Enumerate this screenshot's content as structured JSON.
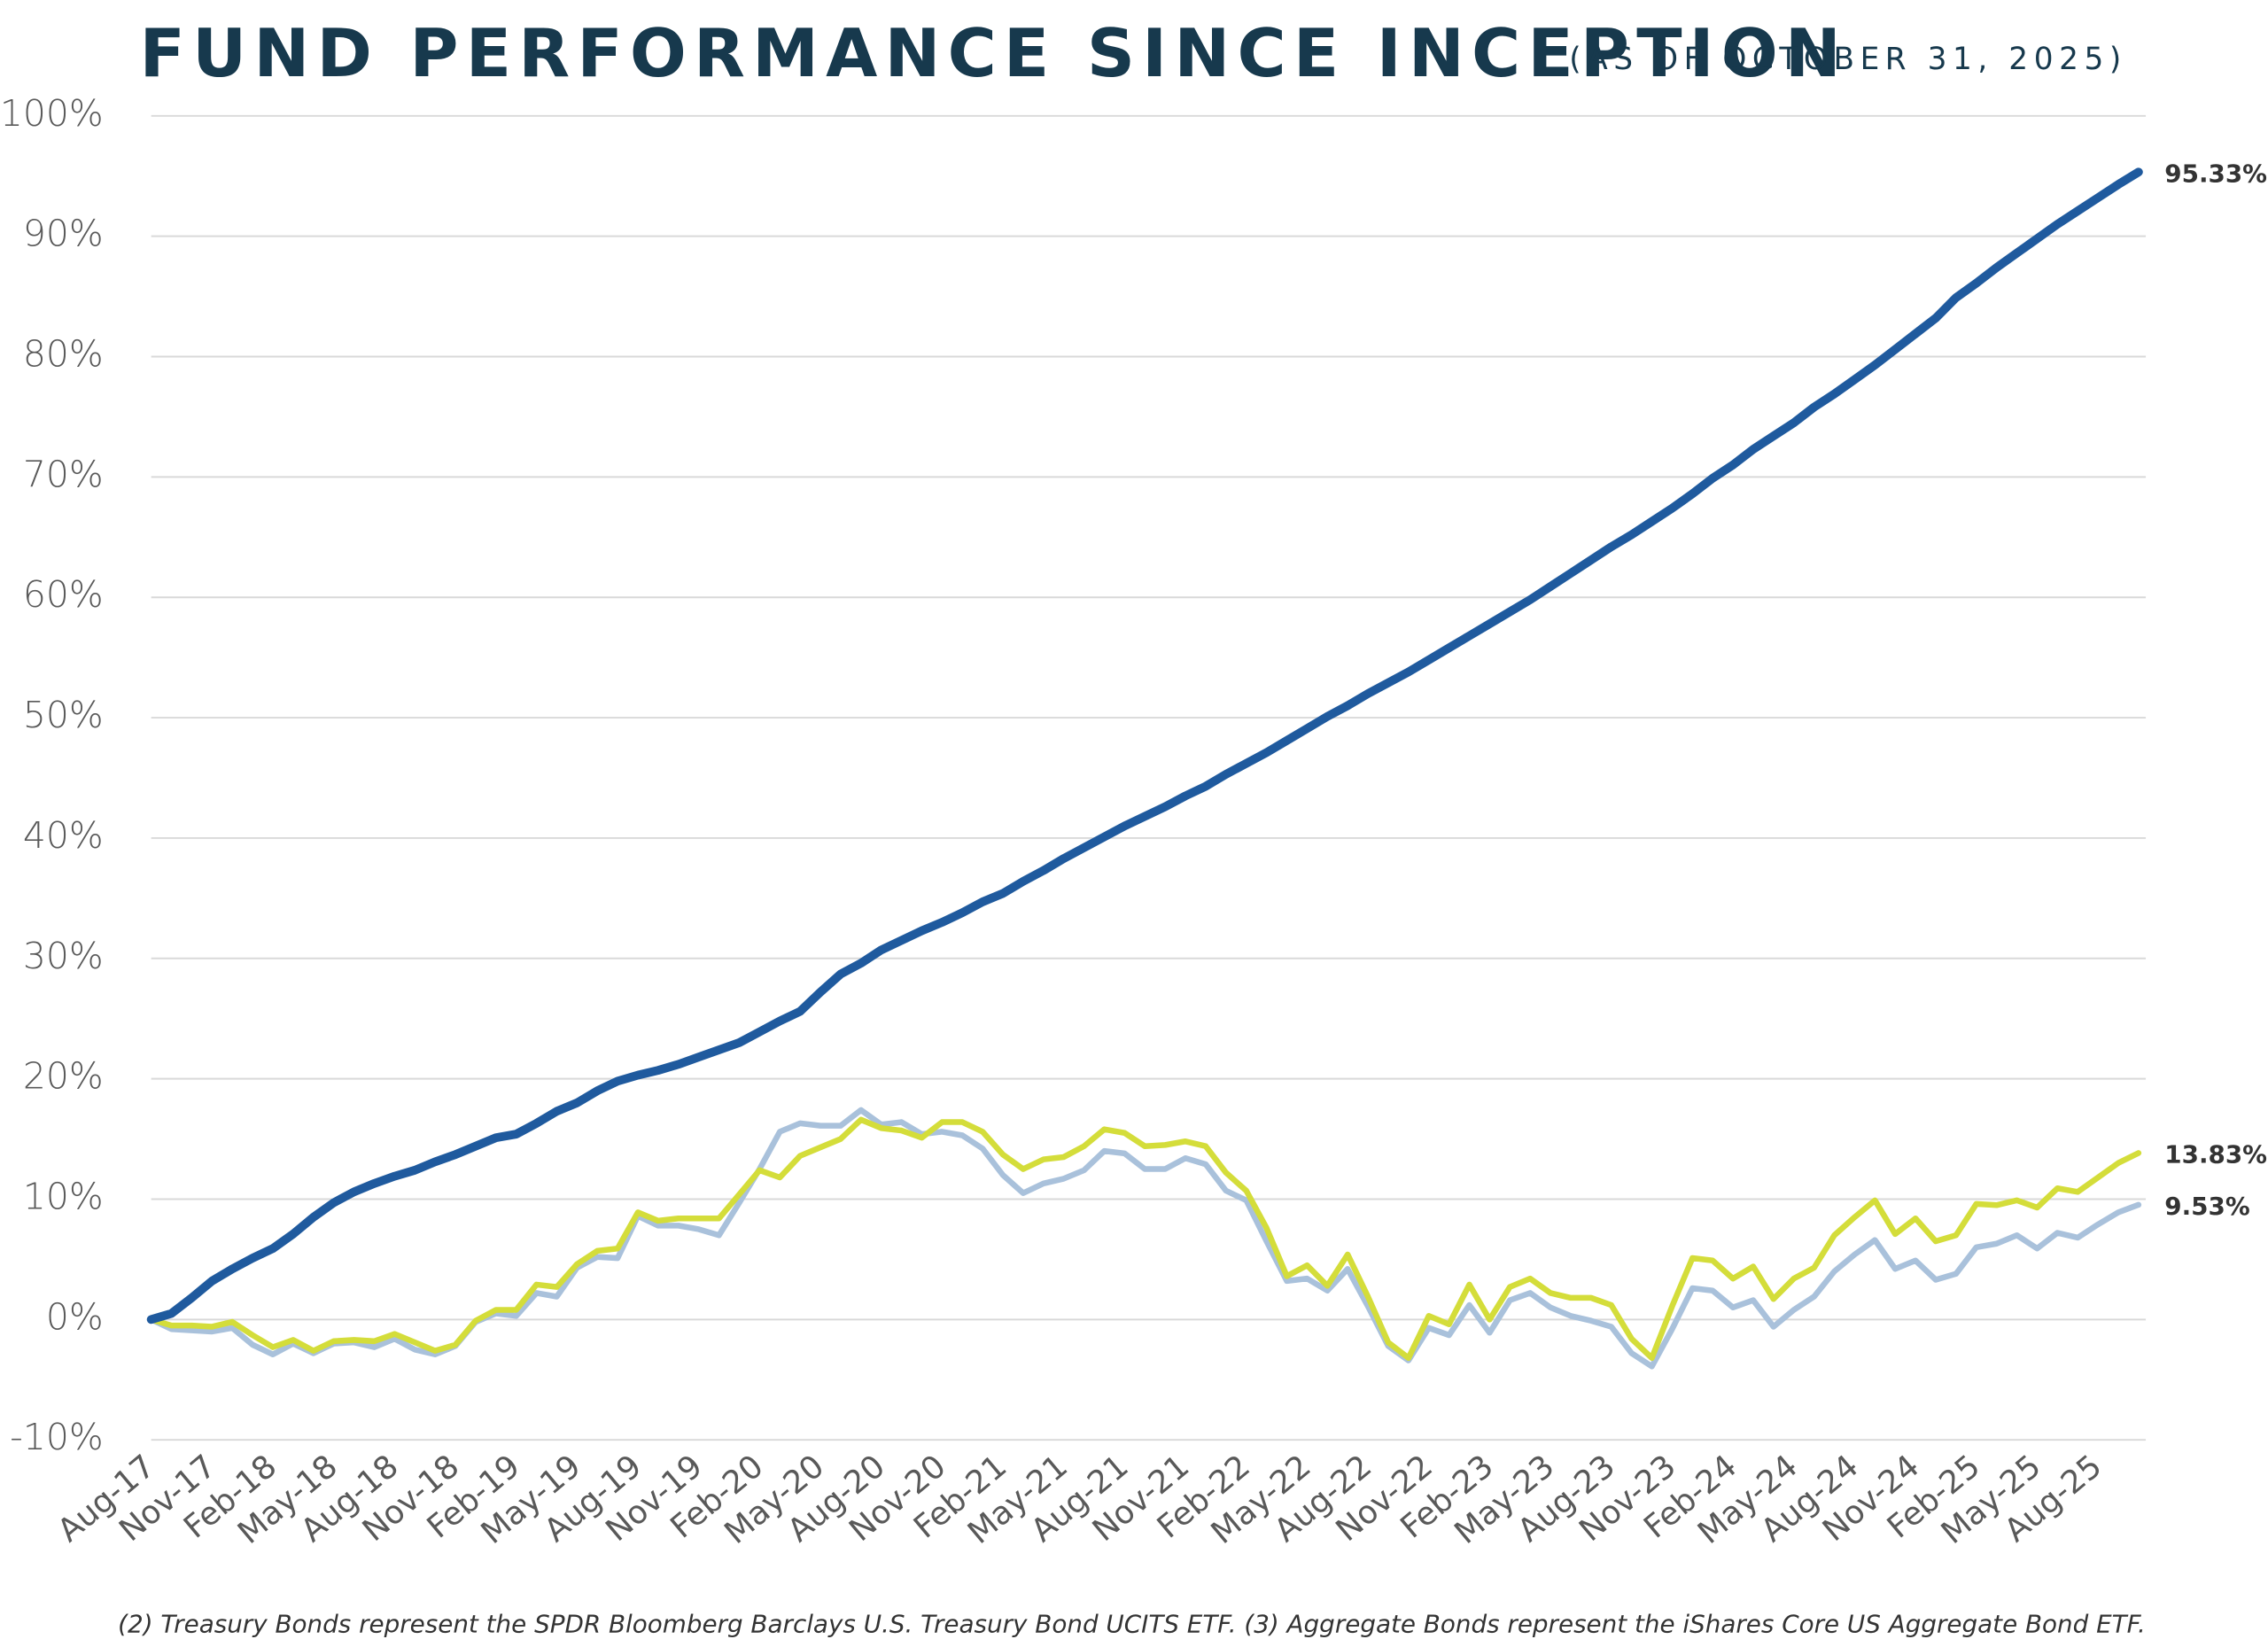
{
  "chart_data": {
    "type": "line",
    "title": "FUND PERFORMANCE SINCE INCEPTION",
    "subtitle": "(AS OF OCTOBER 31, 2025)",
    "footnote": "(2) Treasury Bonds represent the SPDR Bloomberg Barclays U.S. Treasury Bond UCITS ETF.   (3) Aggregate Bonds represent the iShares Core US Aggregate Bond ETF.",
    "categories": [
      "Aug-17",
      null,
      null,
      "Nov-17",
      null,
      null,
      "Feb-18",
      null,
      null,
      "May-18",
      null,
      null,
      "Aug-18",
      null,
      null,
      "Nov-18",
      null,
      null,
      "Feb-19",
      null,
      null,
      "May-19",
      null,
      null,
      "Aug-19",
      null,
      null,
      "Nov-19",
      null,
      null,
      "Feb-20",
      null,
      null,
      "May-20",
      null,
      null,
      "Aug-20",
      null,
      null,
      "Nov-20",
      null,
      null,
      "Feb-21",
      null,
      null,
      "May-21",
      null,
      null,
      "Aug-21",
      null,
      null,
      "Nov-21",
      null,
      null,
      "Feb-22",
      null,
      null,
      "May-22",
      null,
      null,
      "Aug-22",
      null,
      null,
      "Nov-22",
      null,
      null,
      "Feb-23",
      null,
      null,
      "May-23",
      null,
      null,
      "Aug-23",
      null,
      null,
      "Nov-23",
      null,
      null,
      "Feb-24",
      null,
      null,
      "May-24",
      null,
      null,
      "Aug-24",
      null,
      null,
      "Nov-24",
      null,
      null,
      "Feb-25",
      null,
      null,
      "May-25",
      null,
      null,
      "Aug-25",
      null,
      null
    ],
    "series": [
      {
        "color": "#1f5a9e",
        "width": 6,
        "values": [
          0,
          0.5,
          1.8,
          3.2,
          4.2,
          5.1,
          5.9,
          7.1,
          8.5,
          9.7,
          10.6,
          11.3,
          11.9,
          12.4,
          13.1,
          13.7,
          14.4,
          15.1,
          15.4,
          16.3,
          17.3,
          18.0,
          19.0,
          19.8,
          20.3,
          20.7,
          21.2,
          21.8,
          22.4,
          23.0,
          23.9,
          24.8,
          25.6,
          27.2,
          28.7,
          29.6,
          30.7,
          31.5,
          32.3,
          33.0,
          33.8,
          34.7,
          35.4,
          36.4,
          37.3,
          38.3,
          39.2,
          40.1,
          41.0,
          41.8,
          42.6,
          43.5,
          44.3,
          45.3,
          46.2,
          47.1,
          48.1,
          49.1,
          50.1,
          51.0,
          52.0,
          52.9,
          53.8,
          54.8,
          55.8,
          56.8,
          57.8,
          58.8,
          59.8,
          60.9,
          62.0,
          63.1,
          64.2,
          65.2,
          66.3,
          67.4,
          68.6,
          69.9,
          71.0,
          72.3,
          73.4,
          74.5,
          75.8,
          76.9,
          78.1,
          79.3,
          80.6,
          81.9,
          83.2,
          84.9,
          86.1,
          87.4,
          88.6,
          89.8,
          91.0,
          92.1,
          93.2,
          94.3,
          95.33
        ],
        "value_labels": [
          null,
          null,
          null,
          null,
          null,
          null,
          null,
          null,
          null,
          null,
          null,
          null,
          null,
          null,
          null,
          null,
          null,
          null,
          null,
          null,
          null,
          null,
          null,
          null,
          null,
          null,
          null,
          null,
          null,
          null,
          null,
          null,
          null,
          null,
          null,
          null,
          null,
          null,
          null,
          null,
          null,
          null,
          null,
          null,
          null,
          null,
          null,
          null,
          null,
          null,
          null,
          null,
          null,
          null,
          null,
          null,
          null,
          null,
          null,
          null,
          null,
          null,
          null,
          null,
          null,
          null,
          null,
          null,
          null,
          null,
          null,
          null,
          null,
          null,
          null,
          null,
          null,
          null,
          null,
          null,
          null,
          null,
          null,
          null,
          null,
          null,
          null,
          null,
          null,
          null,
          null,
          null,
          null,
          null,
          null,
          null,
          null,
          null,
          "95.33%"
        ]
      },
      {
        "color": "#a9c1db",
        "width": 4,
        "values": [
          0,
          -0.8,
          -0.9,
          -1.0,
          -0.7,
          -2.1,
          -2.9,
          -2.0,
          -2.8,
          -2.0,
          -1.9,
          -2.3,
          -1.6,
          -2.5,
          -2.9,
          -2.2,
          -0.2,
          0.5,
          0.3,
          2.2,
          1.9,
          4.3,
          5.2,
          5.1,
          8.6,
          7.8,
          7.8,
          7.5,
          7.0,
          9.7,
          12.5,
          15.6,
          16.3,
          16.1,
          16.1,
          17.4,
          16.2,
          16.4,
          15.4,
          15.6,
          15.3,
          14.2,
          12.0,
          10.5,
          11.3,
          11.7,
          12.4,
          14.0,
          13.8,
          12.5,
          12.5,
          13.4,
          12.9,
          10.7,
          9.9,
          6.5,
          3.2,
          3.4,
          2.4,
          4.2,
          1.1,
          -2.2,
          -3.4,
          -0.7,
          -1.3,
          1.2,
          -1.1,
          1.6,
          2.2,
          1.0,
          0.3,
          -0.1,
          -0.6,
          -2.8,
          -3.9,
          -0.8,
          2.6,
          2.4,
          1.0,
          1.6,
          -0.6,
          0.8,
          1.9,
          4.0,
          5.4,
          6.6,
          4.2,
          4.9,
          3.3,
          3.8,
          6.0,
          6.3,
          7.0,
          5.9,
          7.2,
          6.8,
          7.9,
          8.9,
          9.53
        ],
        "value_labels": [
          null,
          null,
          null,
          null,
          null,
          null,
          null,
          null,
          null,
          null,
          null,
          null,
          null,
          null,
          null,
          null,
          null,
          null,
          null,
          null,
          null,
          null,
          null,
          null,
          null,
          null,
          null,
          null,
          null,
          null,
          null,
          null,
          null,
          null,
          null,
          null,
          null,
          null,
          null,
          null,
          null,
          null,
          null,
          null,
          null,
          null,
          null,
          null,
          null,
          null,
          null,
          null,
          null,
          null,
          null,
          null,
          null,
          null,
          null,
          null,
          null,
          null,
          null,
          null,
          null,
          null,
          null,
          null,
          null,
          null,
          null,
          null,
          null,
          null,
          null,
          null,
          null,
          null,
          null,
          null,
          null,
          null,
          null,
          null,
          null,
          null,
          null,
          null,
          null,
          null,
          null,
          null,
          null,
          null,
          null,
          null,
          null,
          null,
          "9.53%"
        ]
      },
      {
        "color": "#d4dd3a",
        "width": 4,
        "values": [
          0,
          -0.5,
          -0.5,
          -0.6,
          -0.2,
          -1.3,
          -2.3,
          -1.7,
          -2.6,
          -1.8,
          -1.7,
          -1.8,
          -1.2,
          -1.9,
          -2.6,
          -2.1,
          -0.1,
          0.8,
          0.8,
          2.9,
          2.7,
          4.6,
          5.7,
          5.9,
          8.9,
          8.2,
          8.4,
          8.4,
          8.4,
          10.4,
          12.4,
          11.8,
          13.6,
          14.3,
          15.0,
          16.6,
          15.9,
          15.7,
          15.1,
          16.4,
          16.4,
          15.6,
          13.7,
          12.5,
          13.3,
          13.5,
          14.4,
          15.8,
          15.5,
          14.4,
          14.5,
          14.8,
          14.4,
          12.2,
          10.7,
          7.6,
          3.6,
          4.5,
          2.8,
          5.4,
          1.9,
          -1.9,
          -3.2,
          0.3,
          -0.4,
          2.9,
          0.0,
          2.7,
          3.4,
          2.2,
          1.8,
          1.8,
          1.2,
          -1.6,
          -3.2,
          1.1,
          5.1,
          4.9,
          3.4,
          4.4,
          1.7,
          3.4,
          4.3,
          7.0,
          8.5,
          9.9,
          7.1,
          8.4,
          6.5,
          7.0,
          9.6,
          9.5,
          9.9,
          9.3,
          10.9,
          10.6,
          11.8,
          13.0,
          13.83
        ],
        "value_labels": [
          null,
          null,
          null,
          null,
          null,
          null,
          null,
          null,
          null,
          null,
          null,
          null,
          null,
          null,
          null,
          null,
          null,
          null,
          null,
          null,
          null,
          null,
          null,
          null,
          null,
          null,
          null,
          null,
          null,
          null,
          null,
          null,
          null,
          null,
          null,
          null,
          null,
          null,
          null,
          null,
          null,
          null,
          null,
          null,
          null,
          null,
          null,
          null,
          null,
          null,
          null,
          null,
          null,
          null,
          null,
          null,
          null,
          null,
          null,
          null,
          null,
          null,
          null,
          null,
          null,
          null,
          null,
          null,
          null,
          null,
          null,
          null,
          null,
          null,
          null,
          null,
          null,
          null,
          null,
          null,
          null,
          null,
          null,
          null,
          null,
          null,
          null,
          null,
          null,
          null,
          null,
          null,
          null,
          null,
          null,
          null,
          null,
          null,
          "13.83%"
        ]
      }
    ],
    "ylim": [
      -10,
      100
    ],
    "yticks": [
      {
        "value": -10,
        "label": "-10%"
      },
      {
        "value": 0,
        "label": "0%"
      },
      {
        "value": 10,
        "label": "10%"
      },
      {
        "value": 20,
        "label": "20%"
      },
      {
        "value": 30,
        "label": "30%"
      },
      {
        "value": 40,
        "label": "40%"
      },
      {
        "value": 50,
        "label": "50%"
      },
      {
        "value": 60,
        "label": "60%"
      },
      {
        "value": 70,
        "label": "70%"
      },
      {
        "value": 80,
        "label": "80%"
      },
      {
        "value": 90,
        "label": "90%"
      },
      {
        "value": 100,
        "label": "100%"
      }
    ],
    "grid": true
  }
}
